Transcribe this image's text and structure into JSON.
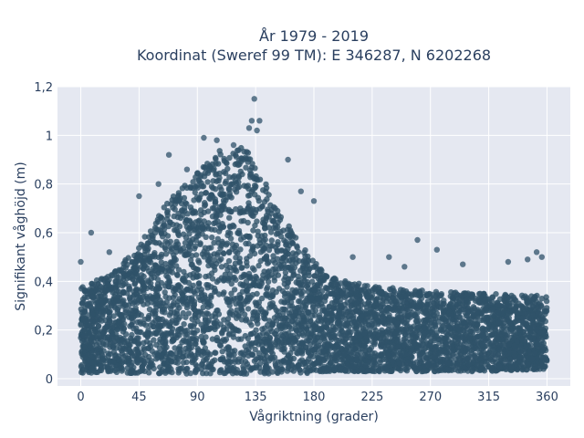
{
  "chart_data": {
    "type": "scatter",
    "title_line1": "År 1979 - 2019",
    "title_line2": "Koordinat (Sweref 99 TM): E 346287, N 6202268",
    "xlabel": "Vågriktning (grader)",
    "ylabel": "Signifikant våghöjd (m)",
    "xlim": [
      -18,
      378
    ],
    "ylim": [
      -0.03,
      1.2
    ],
    "x_ticks": [
      0,
      45,
      90,
      135,
      180,
      225,
      270,
      315,
      360
    ],
    "x_tick_labels": [
      "0",
      "45",
      "90",
      "135",
      "180",
      "225",
      "270",
      "315",
      "360"
    ],
    "y_ticks": [
      0,
      0.2,
      0.4,
      0.6,
      0.8,
      1,
      1.2
    ],
    "y_tick_labels": [
      "0",
      "0,2",
      "0,4",
      "0,6",
      "0,8",
      "1",
      "1,2"
    ],
    "grid": true,
    "marker_color": "#2f5269",
    "plot_background": "#e5e8f1",
    "envelope": [
      {
        "x": 0,
        "y_min": 0.02,
        "y_max": 0.38
      },
      {
        "x": 20,
        "y_min": 0.03,
        "y_max": 0.42
      },
      {
        "x": 45,
        "y_min": 0.02,
        "y_max": 0.55
      },
      {
        "x": 70,
        "y_min": 0.02,
        "y_max": 0.75
      },
      {
        "x": 90,
        "y_min": 0.02,
        "y_max": 0.85
      },
      {
        "x": 110,
        "y_min": 0.02,
        "y_max": 0.95
      },
      {
        "x": 130,
        "y_min": 0.02,
        "y_max": 0.95
      },
      {
        "x": 150,
        "y_min": 0.02,
        "y_max": 0.72
      },
      {
        "x": 170,
        "y_min": 0.02,
        "y_max": 0.55
      },
      {
        "x": 190,
        "y_min": 0.03,
        "y_max": 0.42
      },
      {
        "x": 225,
        "y_min": 0.03,
        "y_max": 0.38
      },
      {
        "x": 270,
        "y_min": 0.03,
        "y_max": 0.36
      },
      {
        "x": 315,
        "y_min": 0.03,
        "y_max": 0.35
      },
      {
        "x": 360,
        "y_min": 0.04,
        "y_max": 0.34
      }
    ],
    "outliers": [
      {
        "x": 134,
        "y": 1.15
      },
      {
        "x": 132,
        "y": 1.06
      },
      {
        "x": 138,
        "y": 1.06
      },
      {
        "x": 130,
        "y": 1.03
      },
      {
        "x": 136,
        "y": 1.02
      },
      {
        "x": 95,
        "y": 0.99
      },
      {
        "x": 105,
        "y": 0.98
      },
      {
        "x": 118,
        "y": 0.96
      },
      {
        "x": 68,
        "y": 0.92
      },
      {
        "x": 82,
        "y": 0.86
      },
      {
        "x": 160,
        "y": 0.9
      },
      {
        "x": 170,
        "y": 0.77
      },
      {
        "x": 180,
        "y": 0.73
      },
      {
        "x": 45,
        "y": 0.75
      },
      {
        "x": 8,
        "y": 0.6
      },
      {
        "x": 60,
        "y": 0.8
      },
      {
        "x": 260,
        "y": 0.57
      },
      {
        "x": 275,
        "y": 0.53
      },
      {
        "x": 295,
        "y": 0.47
      },
      {
        "x": 352,
        "y": 0.52
      },
      {
        "x": 345,
        "y": 0.49
      },
      {
        "x": 356,
        "y": 0.5
      },
      {
        "x": 330,
        "y": 0.48
      },
      {
        "x": 210,
        "y": 0.5
      },
      {
        "x": 238,
        "y": 0.5
      },
      {
        "x": 250,
        "y": 0.46
      },
      {
        "x": 0,
        "y": 0.48
      },
      {
        "x": 22,
        "y": 0.52
      }
    ]
  }
}
